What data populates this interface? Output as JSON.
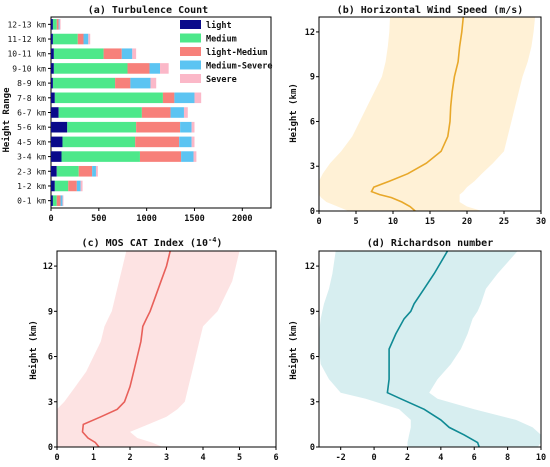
{
  "chart_data": [
    {
      "id": "a",
      "type": "bar",
      "orientation": "horizontal",
      "stacked": true,
      "title": "(a) Turbulence Count",
      "xlabel": "",
      "ylabel": "Height Range",
      "xlim": [
        0,
        2300
      ],
      "xticks": [
        0,
        500,
        1000,
        1500,
        2000
      ],
      "categories": [
        "0-1 km",
        "1-2 km",
        "2-3 km",
        "3-4 km",
        "4-5 km",
        "5-6 km",
        "6-7 km",
        "7-8 km",
        "8-9 km",
        "9-10 km",
        "10-11 km",
        "11-12 km",
        "12-13 km"
      ],
      "series": [
        {
          "name": "light",
          "color": "#0a0a8a",
          "values": [
            20,
            40,
            60,
            110,
            120,
            170,
            80,
            40,
            20,
            30,
            30,
            20,
            20
          ]
        },
        {
          "name": "Medium",
          "color": "#4de88a",
          "values": [
            40,
            140,
            230,
            820,
            760,
            720,
            870,
            1130,
            650,
            770,
            520,
            260,
            40
          ]
        },
        {
          "name": "light-Medium",
          "color": "#f7807a",
          "values": [
            40,
            90,
            140,
            430,
            460,
            460,
            300,
            120,
            160,
            230,
            190,
            60,
            20
          ]
        },
        {
          "name": "Medium-Severe",
          "color": "#5cc4f2",
          "values": [
            20,
            40,
            40,
            130,
            130,
            120,
            140,
            210,
            210,
            110,
            110,
            50,
            10
          ]
        },
        {
          "name": "Severe",
          "color": "#fbb8c8",
          "values": [
            10,
            20,
            20,
            30,
            30,
            30,
            40,
            70,
            60,
            90,
            40,
            20,
            10
          ]
        }
      ],
      "legend": "top-right"
    },
    {
      "id": "b",
      "type": "line",
      "title": "(b) Horizontal Wind Speed (m/s)",
      "xlabel": "",
      "ylabel": "Height (km)",
      "xlim": [
        0,
        30
      ],
      "ylim": [
        0,
        13
      ],
      "xticks": [
        0,
        5,
        10,
        15,
        20,
        25,
        30
      ],
      "yticks": [
        0,
        3,
        6,
        9,
        12
      ],
      "color": "#e8a82a",
      "band_color": "#fff1d6",
      "series": [
        {
          "x": [
            13,
            12.3,
            11.2,
            9.8,
            8.2,
            7.1,
            7.4,
            9.5,
            12,
            14.5,
            16.5,
            17.4,
            17.7,
            17.8,
            18,
            18.3,
            18.8,
            19,
            19.3,
            19.5
          ],
          "y": [
            0,
            0.3,
            0.6,
            0.9,
            1.1,
            1.3,
            1.6,
            2.0,
            2.5,
            3.2,
            4.0,
            5.0,
            6.0,
            7.0,
            8.0,
            9.0,
            10.0,
            11.0,
            12.0,
            13.0
          ],
          "lower": [
            4,
            2.5,
            1,
            0.3,
            0,
            0,
            0,
            0,
            0.5,
            1.5,
            3,
            4.5,
            5.5,
            6.5,
            7.5,
            8.5,
            9,
            9.3,
            9.5,
            9.6
          ],
          "upper": [
            22,
            20,
            19,
            19,
            19,
            19.5,
            20,
            21,
            22,
            23.5,
            25,
            25.5,
            26,
            26.5,
            27,
            27.5,
            28.2,
            28.7,
            29,
            29.2
          ]
        }
      ]
    },
    {
      "id": "c",
      "type": "line",
      "title": "(c) MOS CAT Index (10",
      "title_sup": "-4",
      "title_end": ")",
      "xlabel": "",
      "ylabel": "Height (km)",
      "xlim": [
        0,
        6
      ],
      "ylim": [
        0,
        13
      ],
      "xticks": [
        0,
        1,
        2,
        3,
        4,
        5,
        6
      ],
      "yticks": [
        0,
        3,
        6,
        9,
        12
      ],
      "color": "#e8605a",
      "band_color": "#fde3e3",
      "series": [
        {
          "x": [
            1.15,
            1.05,
            0.85,
            0.7,
            0.72,
            1.2,
            1.65,
            1.85,
            2.0,
            2.1,
            2.2,
            2.3,
            2.35,
            2.45,
            2.55,
            2.7,
            2.85,
            3.0,
            3.1
          ],
          "y": [
            0,
            0.3,
            0.6,
            1.0,
            1.5,
            2.0,
            2.5,
            3.0,
            4.0,
            5.0,
            6.0,
            7.0,
            8.0,
            8.5,
            9.0,
            10.0,
            11.0,
            12.0,
            13.0
          ],
          "lower": [
            0,
            0,
            0,
            0,
            0,
            0,
            0,
            0.2,
            0.5,
            0.8,
            1.0,
            1.2,
            1.3,
            1.4,
            1.5,
            1.6,
            1.7,
            1.8,
            1.9
          ],
          "upper": [
            2.9,
            2.6,
            2.2,
            2.0,
            2.5,
            3.0,
            3.3,
            3.5,
            3.6,
            3.7,
            3.8,
            3.9,
            4.0,
            4.2,
            4.4,
            4.6,
            4.8,
            4.9,
            5.0
          ]
        }
      ]
    },
    {
      "id": "d",
      "type": "line",
      "title": "(d) Richardson number",
      "xlabel": "",
      "ylabel": "Height (km)",
      "xlim": [
        -3.3,
        10
      ],
      "ylim": [
        0,
        13
      ],
      "xticks": [
        -2,
        0,
        2,
        4,
        6,
        8,
        10
      ],
      "yticks": [
        0,
        3,
        6,
        9,
        12
      ],
      "color": "#0f8a94",
      "band_color": "#d7eef0",
      "series": [
        {
          "x": [
            6.3,
            6.2,
            5.4,
            4.5,
            4.0,
            3.0,
            1.6,
            0.8,
            0.9,
            0.9,
            0.9,
            1.3,
            1.8,
            2.2,
            2.4,
            3.0,
            3.6,
            4.4
          ],
          "y": [
            0,
            0.3,
            0.8,
            1.3,
            1.8,
            2.5,
            3.2,
            3.6,
            4.5,
            5.5,
            6.5,
            7.5,
            8.5,
            9.0,
            9.5,
            10.5,
            11.5,
            13.0
          ],
          "lower": [
            2.0,
            2.0,
            2.1,
            2.2,
            2.2,
            1.5,
            -0.5,
            -2.0,
            -2.7,
            -3.2,
            -3.3,
            -3.3,
            -3.2,
            -3.1,
            -3.0,
            -2.7,
            -2.5,
            -2.3
          ],
          "upper": [
            9.8,
            10.0,
            10.0,
            9.5,
            8.5,
            6.0,
            3.8,
            3.3,
            3.8,
            4.6,
            5.2,
            5.6,
            5.9,
            6.2,
            6.4,
            6.7,
            7.4,
            8.6
          ]
        }
      ]
    }
  ]
}
